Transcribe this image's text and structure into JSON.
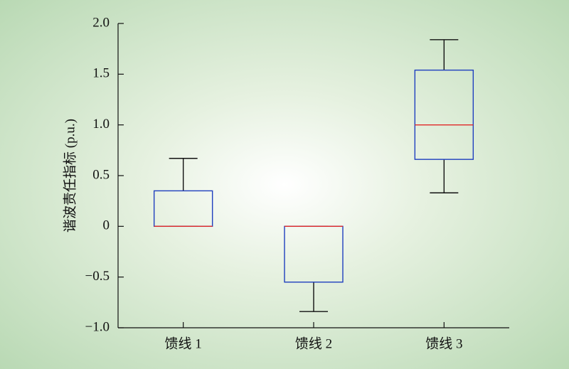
{
  "chart_data": {
    "type": "box",
    "y_label": "谐波责任指标 (p.u.)",
    "categories": [
      "馈线 1",
      "馈线 2",
      "馈线 3"
    ],
    "min": [
      0,
      -0.84,
      0.33
    ],
    "q1": [
      0,
      -0.55,
      0.66
    ],
    "median": [
      0,
      0,
      1.0
    ],
    "q3": [
      0.35,
      0,
      1.54
    ],
    "max": [
      0.67,
      0,
      1.84
    ],
    "box_color": "#1f3fbf",
    "median_color": "#e02828",
    "whisker_color": "#111111",
    "ylim": [
      -1.0,
      2.0
    ],
    "yticks": [
      {
        "value": -1.0,
        "label": "−1.0"
      },
      {
        "value": -0.5,
        "label": "−0.5"
      },
      0,
      {
        "value": 0.5,
        "label": "0.5"
      },
      {
        "value": 1.0,
        "label": "1.0"
      },
      {
        "value": 1.5,
        "label": "1.5"
      },
      {
        "value": 2.0,
        "label": "2.0"
      }
    ]
  }
}
